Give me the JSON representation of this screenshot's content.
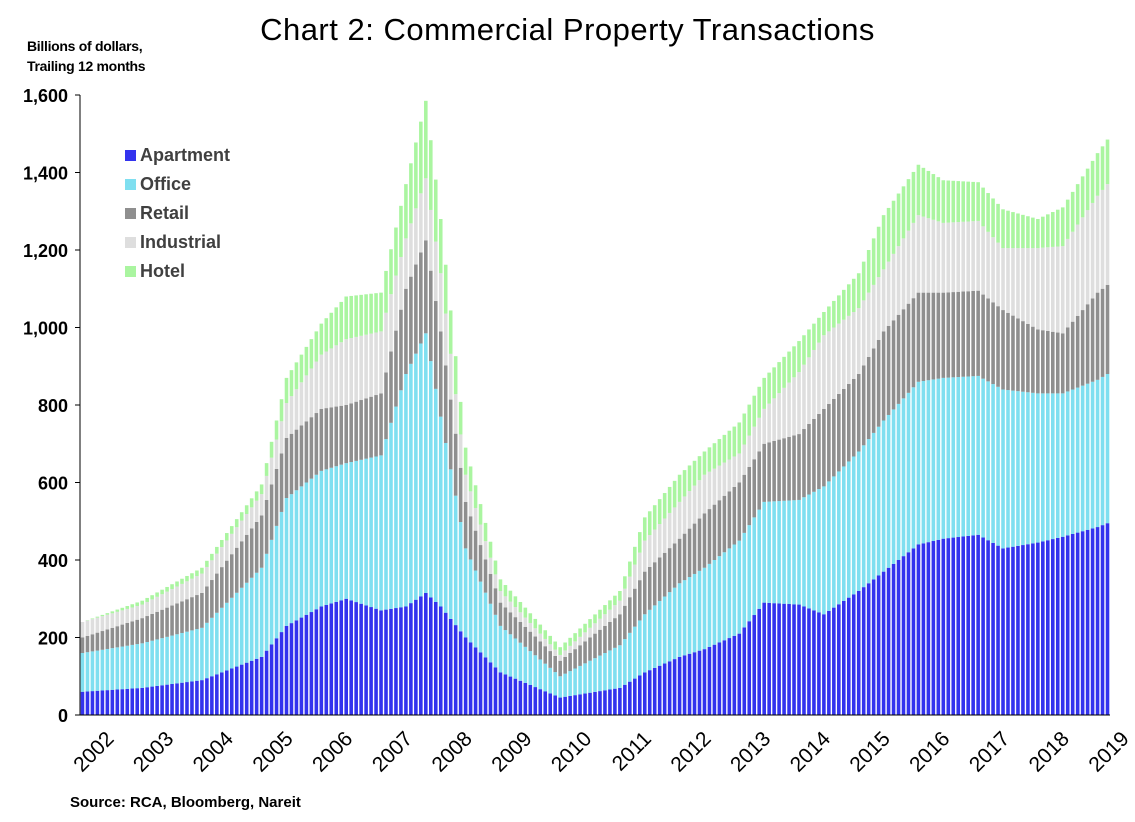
{
  "chart_data": {
    "type": "bar",
    "stacked": true,
    "title": "Chart 2: Commercial Property Transactions",
    "ylabel": [
      "Billions of dollars,",
      "Trailing 12 months"
    ],
    "source": "Source: RCA, Bloomberg, Nareit",
    "ylim": [
      0,
      1600
    ],
    "yticks": [
      "0",
      "200",
      "400",
      "600",
      "800",
      "1,000",
      "1,200",
      "1,400",
      "1,600"
    ],
    "xticks": [
      "2002",
      "2003",
      "2004",
      "2005",
      "2006",
      "2007",
      "2008",
      "2009",
      "2010",
      "2011",
      "2012",
      "2013",
      "2014",
      "2015",
      "2016",
      "2017",
      "2018",
      "2019"
    ],
    "x_range": [
      "2002-01",
      "2019-03"
    ],
    "frequency": "monthly",
    "legend_position": "top-left",
    "grid": false,
    "anchor_points": [
      {
        "x": "2002-01",
        "values": [
          60,
          100,
          40,
          40,
          0
        ]
      },
      {
        "x": "2003-01",
        "values": [
          70,
          115,
          65,
          35,
          10
        ]
      },
      {
        "x": "2004-01",
        "values": [
          90,
          135,
          90,
          50,
          15
        ]
      },
      {
        "x": "2005-01",
        "values": [
          150,
          230,
          135,
          55,
          25
        ]
      },
      {
        "x": "2005-06",
        "values": [
          230,
          330,
          155,
          90,
          65
        ]
      },
      {
        "x": "2006-01",
        "values": [
          280,
          350,
          160,
          140,
          80
        ]
      },
      {
        "x": "2006-06",
        "values": [
          300,
          350,
          150,
          170,
          110
        ]
      },
      {
        "x": "2007-01",
        "values": [
          270,
          400,
          160,
          160,
          100
        ]
      },
      {
        "x": "2007-06",
        "values": [
          280,
          600,
          220,
          130,
          140
        ]
      },
      {
        "x": "2007-10",
        "values": [
          315,
          670,
          240,
          160,
          200
        ]
      },
      {
        "x": "2008-01",
        "values": [
          280,
          490,
          220,
          150,
          140
        ]
      },
      {
        "x": "2008-06",
        "values": [
          200,
          230,
          120,
          70,
          70
        ]
      },
      {
        "x": "2009-01",
        "values": [
          110,
          120,
          60,
          30,
          30
        ]
      },
      {
        "x": "2010-01",
        "values": [
          45,
          55,
          40,
          15,
          20
        ]
      },
      {
        "x": "2011-01",
        "values": [
          70,
          110,
          80,
          35,
          25
        ]
      },
      {
        "x": "2011-06",
        "values": [
          110,
          150,
          110,
          80,
          60
        ]
      },
      {
        "x": "2012-01",
        "values": [
          150,
          190,
          115,
          95,
          70
        ]
      },
      {
        "x": "2012-06",
        "values": [
          170,
          210,
          140,
          100,
          60
        ]
      },
      {
        "x": "2013-01",
        "values": [
          210,
          240,
          150,
          75,
          80
        ]
      },
      {
        "x": "2013-06",
        "values": [
          290,
          260,
          150,
          90,
          80
        ]
      },
      {
        "x": "2014-01",
        "values": [
          285,
          270,
          170,
          160,
          80
        ]
      },
      {
        "x": "2014-06",
        "values": [
          260,
          330,
          200,
          190,
          60
        ]
      },
      {
        "x": "2015-01",
        "values": [
          320,
          360,
          200,
          170,
          90
        ]
      },
      {
        "x": "2015-06",
        "values": [
          370,
          390,
          230,
          160,
          140
        ]
      },
      {
        "x": "2016-01",
        "values": [
          440,
          420,
          230,
          200,
          130
        ]
      },
      {
        "x": "2016-06",
        "values": [
          455,
          415,
          220,
          180,
          110
        ]
      },
      {
        "x": "2017-01",
        "values": [
          465,
          410,
          220,
          180,
          100
        ]
      },
      {
        "x": "2017-06",
        "values": [
          430,
          410,
          205,
          160,
          100
        ]
      },
      {
        "x": "2018-01",
        "values": [
          445,
          385,
          165,
          210,
          75
        ]
      },
      {
        "x": "2018-06",
        "values": [
          460,
          370,
          155,
          225,
          100
        ]
      },
      {
        "x": "2019-01",
        "values": [
          485,
          380,
          225,
          250,
          110
        ]
      },
      {
        "x": "2019-03",
        "values": [
          495,
          385,
          230,
          260,
          115
        ]
      }
    ],
    "series": [
      {
        "name": "Apartment",
        "color": "#3333ee"
      },
      {
        "name": "Office",
        "color": "#7fdff0"
      },
      {
        "name": "Retail",
        "color": "#8f8f8f"
      },
      {
        "name": "Industrial",
        "color": "#dedede"
      },
      {
        "name": "Hotel",
        "color": "#aaf5a0"
      }
    ]
  }
}
